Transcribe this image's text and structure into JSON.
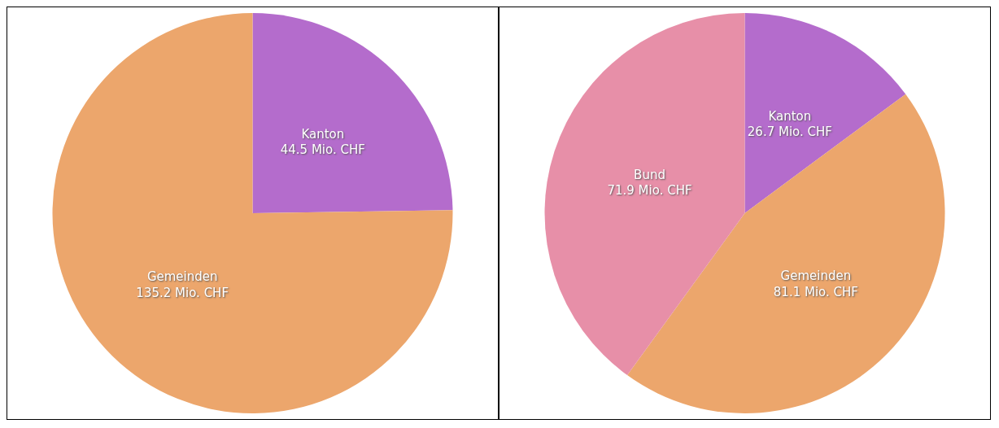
{
  "chart_data": [
    {
      "type": "pie",
      "categories": [
        "Kanton",
        "Gemeinden"
      ],
      "values": [
        44.5,
        135.2
      ],
      "colors": [
        "#b46ccc",
        "#eca66c"
      ],
      "value_labels": [
        "44.5 Mio. CHF",
        "135.2 Mio. CHF"
      ]
    },
    {
      "type": "pie",
      "categories": [
        "Kanton",
        "Gemeinden",
        "Bund"
      ],
      "values": [
        26.7,
        81.1,
        71.9
      ],
      "colors": [
        "#b46ccc",
        "#eca66c",
        "#e78fa8"
      ],
      "value_labels": [
        "26.7 Mio. CHF",
        "81.1 Mio. CHF",
        "71.9 Mio. CHF"
      ]
    }
  ]
}
